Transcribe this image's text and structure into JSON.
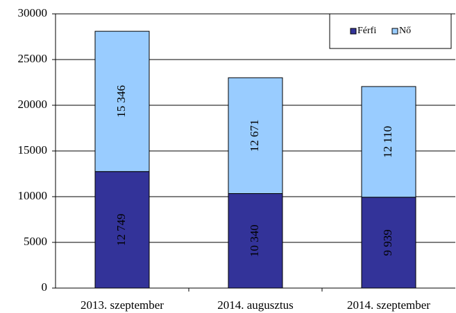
{
  "chart_data": {
    "type": "stacked_bar",
    "categories": [
      "2013. szeptember",
      "2014. augusztus",
      "2014. szeptember"
    ],
    "series": [
      {
        "name": "Férfi",
        "color": "#333399",
        "values": [
          12749,
          10340,
          9939
        ],
        "value_labels": [
          "12 749",
          "10 340",
          "9 939"
        ]
      },
      {
        "name": "Nő",
        "color": "#99ccff",
        "values": [
          15346,
          12671,
          12110
        ],
        "value_labels": [
          "15 346",
          "12 671",
          "12 110"
        ]
      }
    ],
    "ylim": [
      0,
      30000
    ],
    "yticks": [
      0,
      5000,
      10000,
      15000,
      20000,
      25000,
      30000
    ],
    "grid": true,
    "legend": "upper right"
  }
}
